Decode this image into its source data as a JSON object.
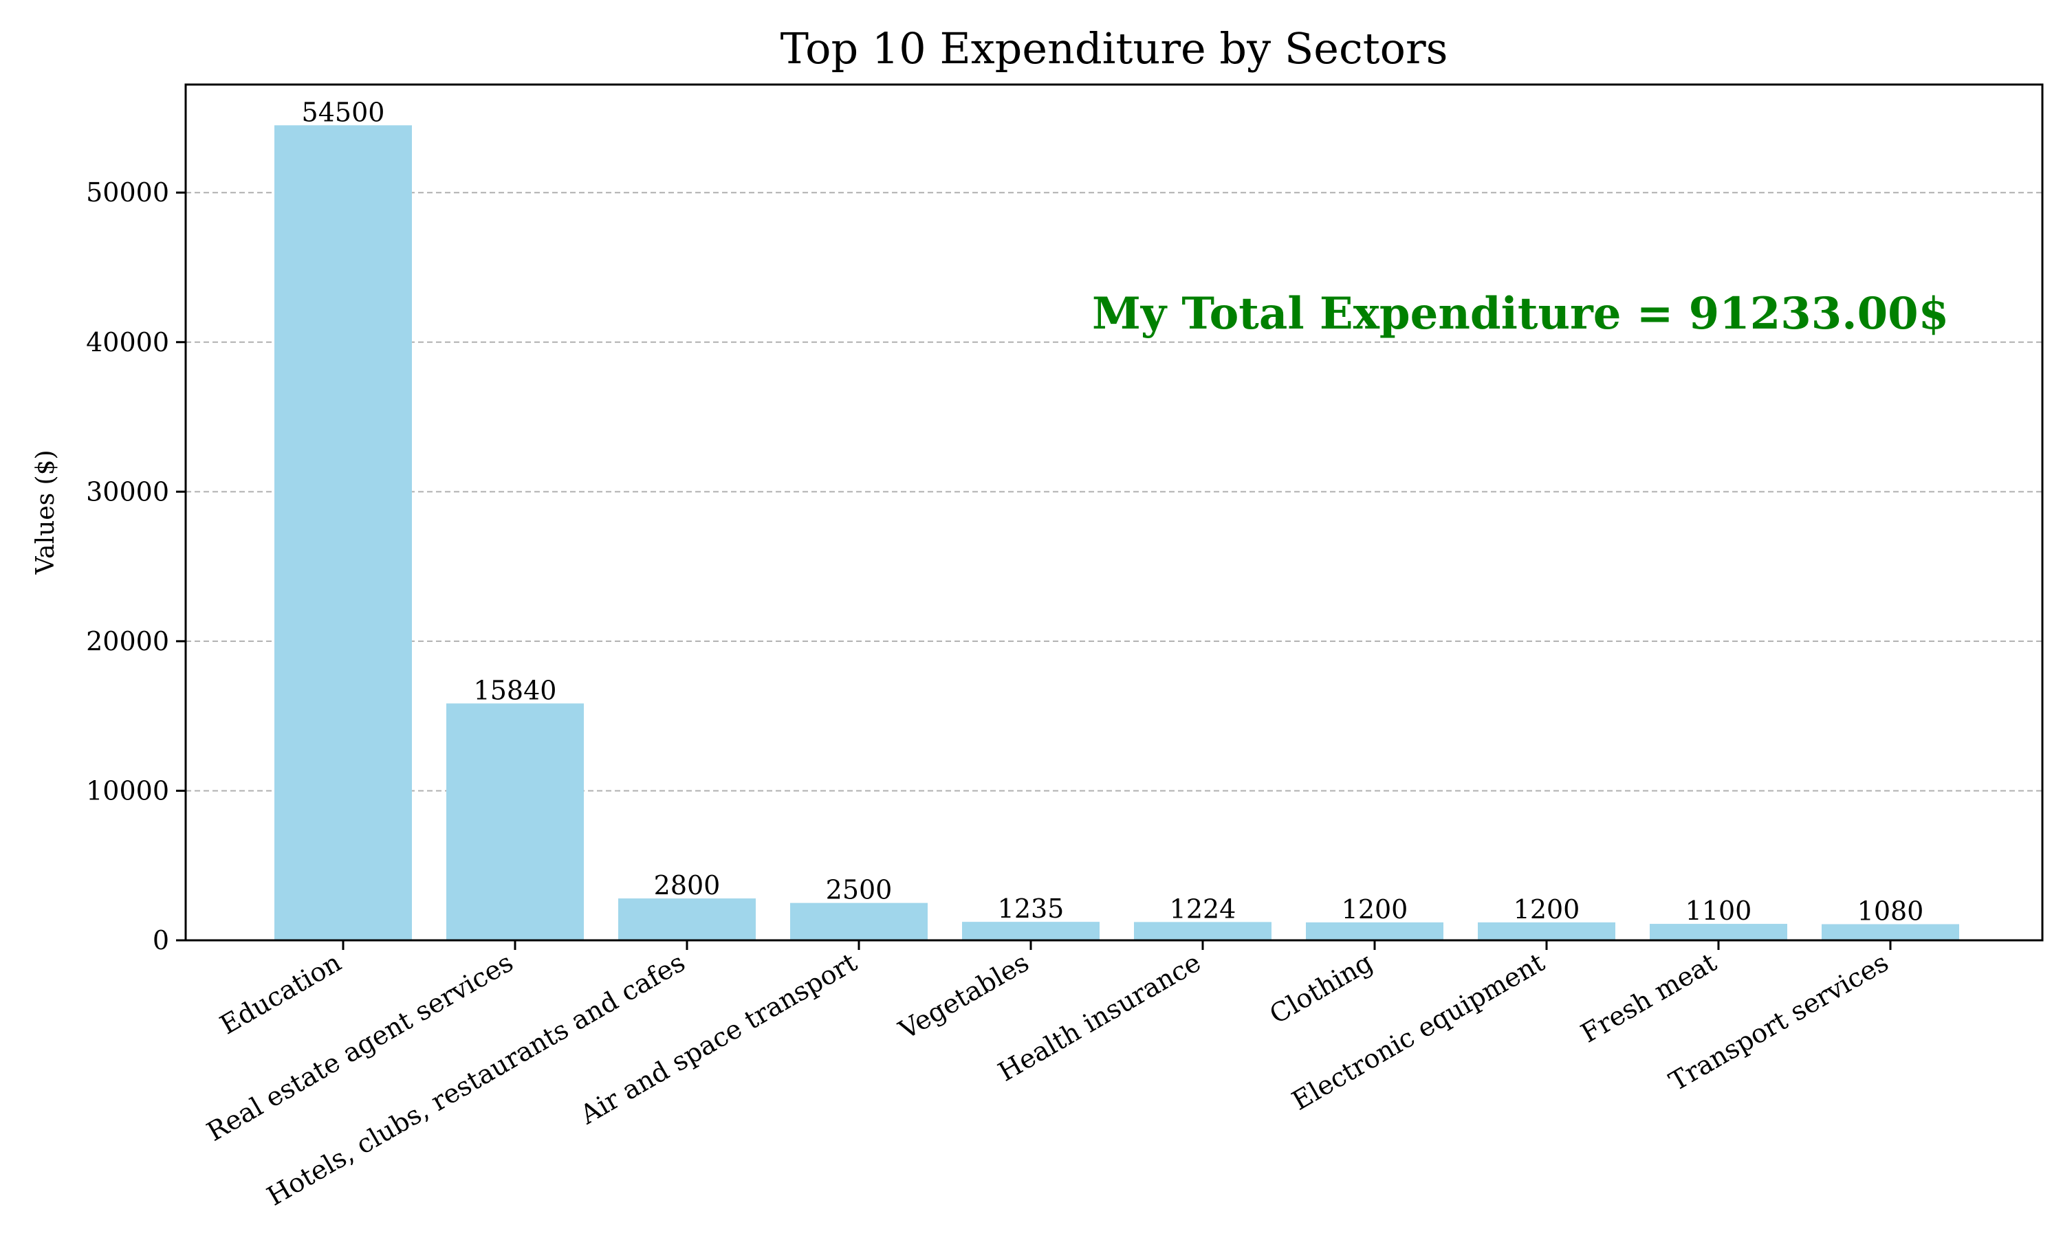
{
  "chart_data": {
    "type": "bar",
    "title": "Top 10 Expenditure by Sectors",
    "xlabel": "",
    "ylabel": "Values ($)",
    "categories": [
      "Education",
      "Real estate agent services",
      "Hotels, clubs, restaurants and cafes",
      "Air and space transport",
      "Vegetables",
      "Health insurance",
      "Clothing",
      "Electronic equipment",
      "Fresh meat",
      "Transport services"
    ],
    "values": [
      54500,
      15840,
      2800,
      2500,
      1235,
      1224,
      1200,
      1200,
      1100,
      1080
    ],
    "data_labels": [
      "54500",
      "15840",
      "2800",
      "2500",
      "1235",
      "1224",
      "1200",
      "1200",
      "1100",
      "1080"
    ],
    "yticks": [
      0,
      10000,
      20000,
      30000,
      40000,
      50000
    ],
    "ytick_labels": [
      "0",
      "10000",
      "20000",
      "30000",
      "40000",
      "50000"
    ],
    "ylim": [
      0,
      57225
    ],
    "grid": "y-dashed",
    "annotation": "My Total Expenditure = 91233.00$",
    "colors": {
      "bar": "#a0d6eb",
      "annotation": "#008000",
      "grid": "#b0b0b0",
      "axis": "#000000"
    }
  }
}
